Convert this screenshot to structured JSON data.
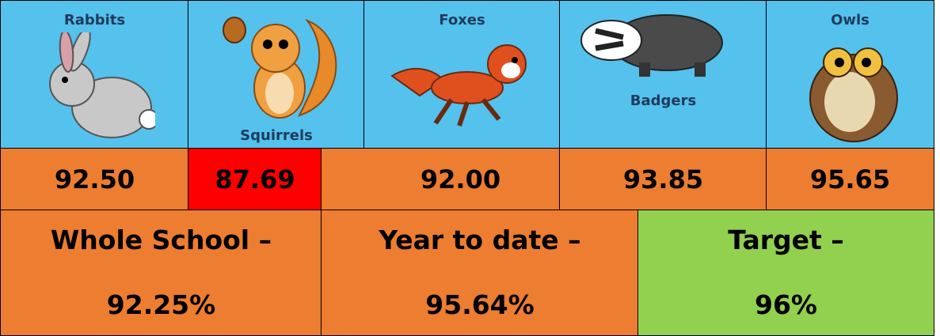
{
  "animals": [
    {
      "label": "Rabbits",
      "score": "92.50"
    },
    {
      "label": "Squirrels",
      "score": "87.69"
    },
    {
      "label": "Foxes",
      "score": "92.00"
    },
    {
      "label": "Badgers",
      "score": "93.85"
    },
    {
      "label": "Owls",
      "score": "95.65"
    }
  ],
  "summary": [
    {
      "label": "Whole School –",
      "value": "92.25%"
    },
    {
      "label": "Year to date –",
      "value": "95.64%"
    },
    {
      "label": "Target –",
      "value": "96%"
    }
  ]
}
